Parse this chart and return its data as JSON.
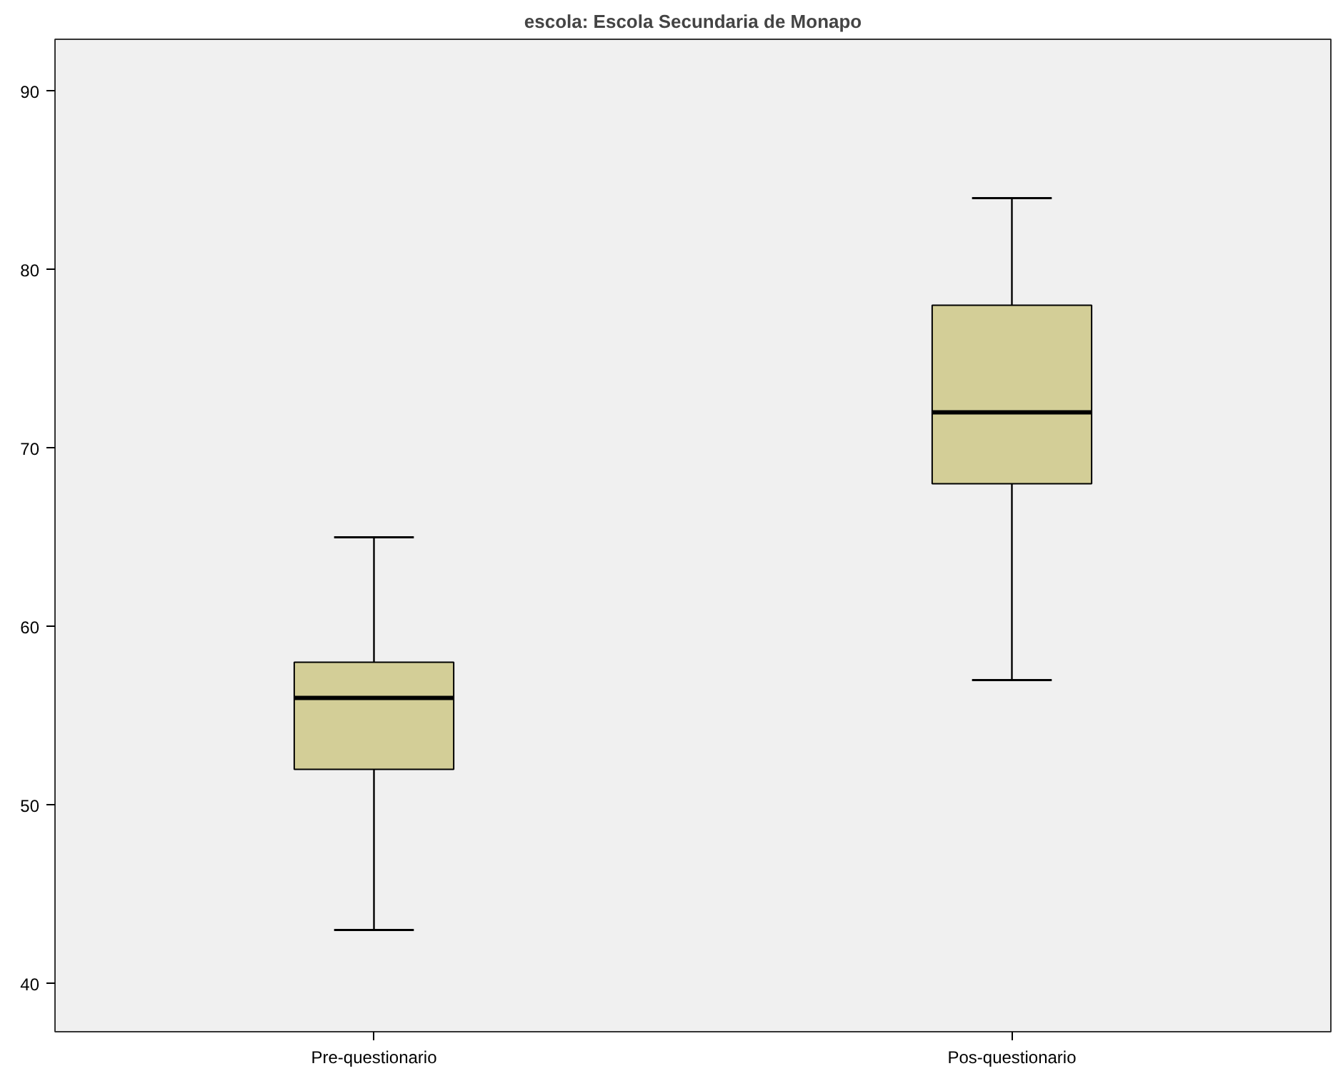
{
  "chart_data": {
    "type": "box",
    "title": "escola: Escola Secundaria de Monapo",
    "categories": [
      "Pre-questionario",
      "Pos-questionario"
    ],
    "boxes": [
      {
        "low": 43,
        "q1": 52,
        "median": 56,
        "q3": 58,
        "high": 65
      },
      {
        "low": 57,
        "q1": 68,
        "median": 72,
        "q3": 78,
        "high": 84
      }
    ],
    "color": "#d3ce97",
    "ylim": [
      37.3,
      92.9
    ],
    "yticks": [
      40,
      50,
      60,
      70,
      80,
      90
    ],
    "grid": false
  }
}
